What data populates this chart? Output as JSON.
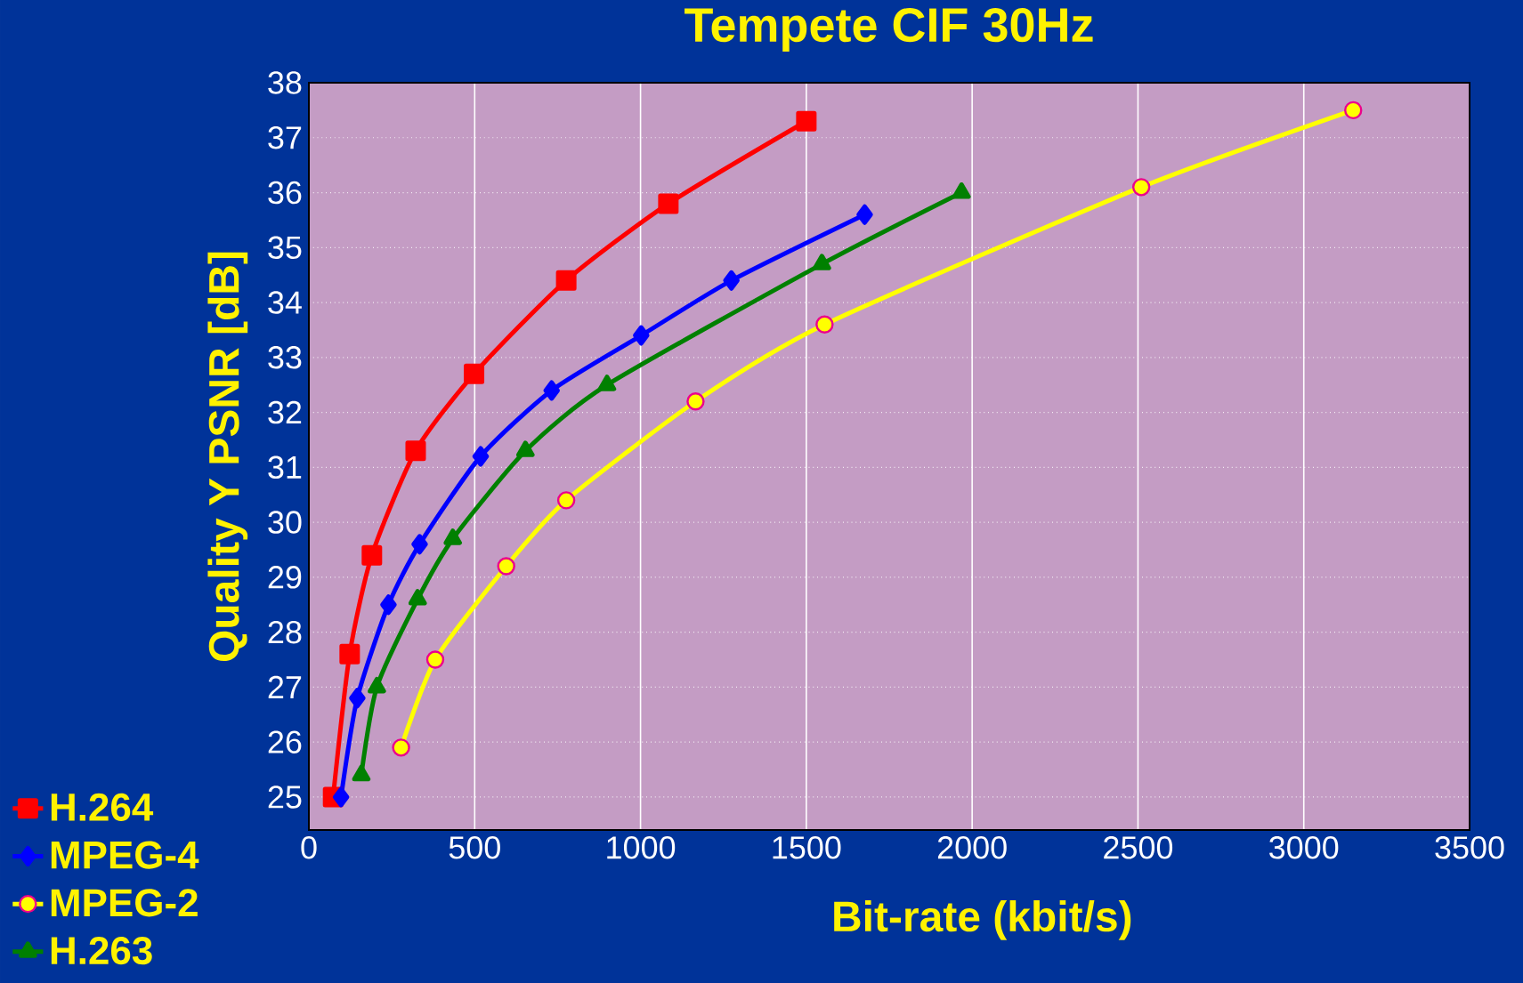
{
  "chart_data": {
    "type": "line",
    "title": "Tempete CIF 30Hz",
    "xlabel": "Bit-rate (kbit/s)",
    "ylabel": "Quality Y PSNR [dB]",
    "series": [
      {
        "name": "H.264",
        "color": "#ff0000",
        "marker": "square",
        "x": [
          73,
          123,
          190,
          322,
          498,
          776,
          1084,
          1500
        ],
        "values": [
          25.0,
          27.6,
          29.4,
          31.3,
          32.7,
          34.4,
          35.8,
          37.3
        ]
      },
      {
        "name": "MPEG-4",
        "color": "#0000ff",
        "marker": "diamond",
        "x": [
          97,
          146,
          240,
          334,
          518,
          732,
          1002,
          1274,
          1676
        ],
        "values": [
          25.0,
          26.8,
          28.5,
          29.6,
          31.2,
          32.4,
          33.4,
          34.4,
          35.6
        ]
      },
      {
        "name": "MPEG-2",
        "color": "#ffff00",
        "marker": "circle",
        "x": [
          278,
          381,
          595,
          776,
          1166,
          1555,
          2510,
          3149
        ],
        "values": [
          25.9,
          27.5,
          29.2,
          30.4,
          32.2,
          33.6,
          36.1,
          37.5
        ]
      },
      {
        "name": "H.263",
        "color": "#008000",
        "marker": "triangle",
        "x": [
          158,
          205,
          328,
          434,
          653,
          899,
          1547,
          1968
        ],
        "values": [
          25.4,
          27.0,
          28.6,
          29.7,
          31.3,
          32.5,
          34.7,
          36.0
        ]
      }
    ],
    "xlim": [
      0,
      3500
    ],
    "xticks": [
      0,
      500,
      1000,
      1500,
      2000,
      2500,
      3000,
      3500
    ],
    "ylim": [
      24.4,
      38
    ],
    "yticks": [
      25,
      26,
      27,
      28,
      29,
      30,
      31,
      32,
      33,
      34,
      35,
      36,
      37,
      38
    ],
    "grid": true,
    "legend": "bottom left"
  }
}
